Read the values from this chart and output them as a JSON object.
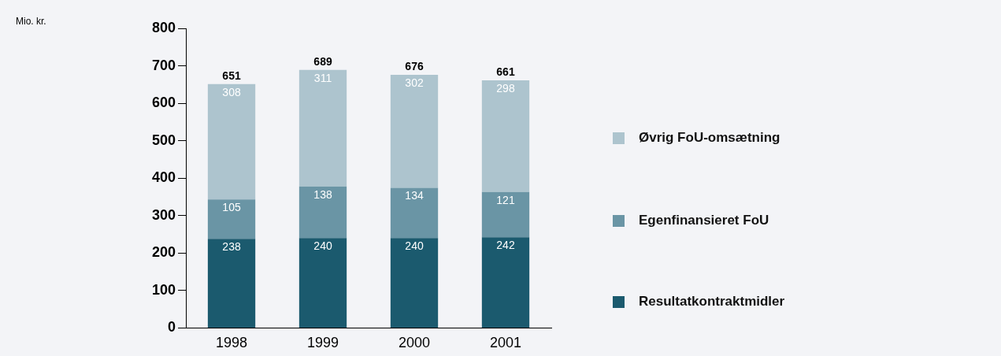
{
  "chart_data": {
    "type": "bar",
    "stacked": true,
    "annotations": [
      "Mio. kr."
    ],
    "categories": [
      "1998",
      "1999",
      "2000",
      "2001"
    ],
    "series": [
      {
        "name": "Resultatkontraktmidler",
        "color": "#1b5a6e",
        "values": [
          238,
          240,
          240,
          242
        ]
      },
      {
        "name": "Egenfinansieret FoU",
        "color": "#6a95a5",
        "values": [
          105,
          138,
          134,
          121
        ]
      },
      {
        "name": "Øvrig FoU-omsætning",
        "color": "#adc4ce",
        "values": [
          308,
          311,
          302,
          298
        ]
      }
    ],
    "ylim": [
      0,
      800
    ],
    "yticks": [
      0,
      100,
      200,
      300,
      400,
      500,
      600,
      700,
      800
    ],
    "data_labels": true,
    "totals": [
      "651",
      "689",
      "676",
      "661"
    ],
    "grid": false,
    "legend": "right"
  }
}
